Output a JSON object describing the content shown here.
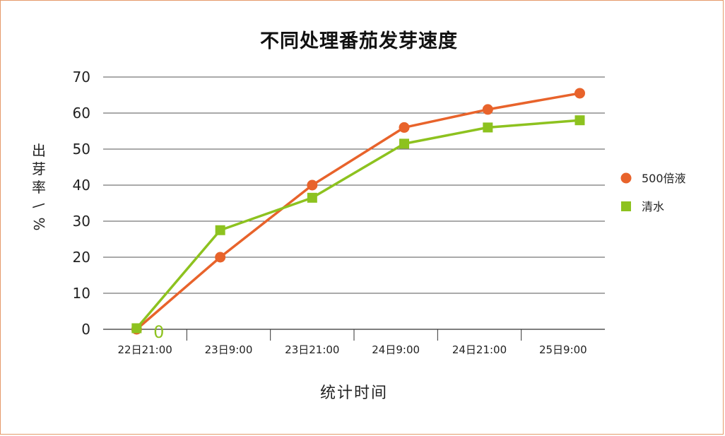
{
  "chart_data": {
    "type": "line",
    "title": "不同处理番茄发芽速度",
    "xlabel": "统计时间",
    "ylabel": "出芽率\\%",
    "categories": [
      "22日21:00",
      "23日9:00",
      "23日21:00",
      "24日9:00",
      "24日21:00",
      "25日9:00"
    ],
    "ylim": [
      0,
      70
    ],
    "yticks": [
      0,
      10,
      20,
      30,
      40,
      50,
      60,
      70
    ],
    "grid": true,
    "legend_position": "right",
    "series": [
      {
        "name": "500倍液",
        "color": "#e8632b",
        "marker": "circle",
        "x": [
          0.4,
          1.4,
          2.5,
          3.6,
          4.6,
          5.7
        ],
        "values": [
          0,
          20,
          40,
          56,
          61,
          65.5
        ]
      },
      {
        "name": "清水",
        "color": "#8dc21f",
        "marker": "square",
        "x": [
          0.4,
          1.4,
          2.5,
          3.6,
          4.6,
          5.7
        ],
        "values": [
          0.3,
          27.5,
          36.5,
          51.5,
          56,
          58
        ]
      }
    ],
    "annotations": [
      {
        "text": "0",
        "x": 0.55,
        "y": 0,
        "color": "#8dc21f"
      }
    ]
  }
}
